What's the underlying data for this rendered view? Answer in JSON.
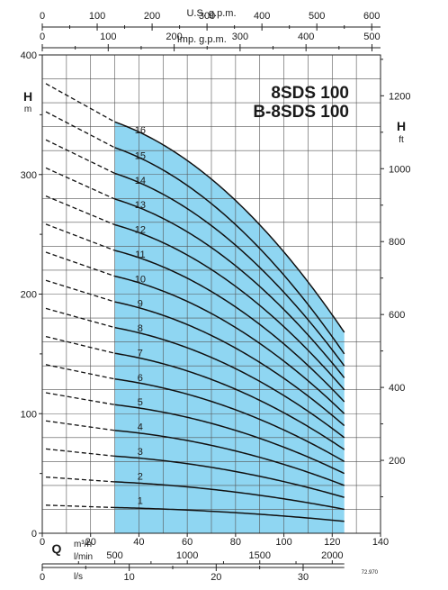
{
  "chart_data": {
    "type": "line",
    "title_lines": [
      "8SDS 100",
      "B-8SDS 100"
    ],
    "axes": {
      "usgpm": {
        "label": "U.S. g.p.m.",
        "ticks": [
          0,
          100,
          200,
          300,
          400,
          500,
          600
        ],
        "range": [
          0,
          616
        ]
      },
      "impgpm": {
        "label": "Imp. g.p.m.",
        "ticks": [
          0,
          100,
          200,
          300,
          400,
          500
        ],
        "range": [
          0,
          513
        ]
      },
      "q_m3h": {
        "label_symbol": "Q",
        "label": "m³/h",
        "ticks": [
          0,
          20,
          40,
          60,
          80,
          100,
          120,
          140
        ],
        "range": [
          0,
          140
        ]
      },
      "q_lmin": {
        "label": "l/min",
        "ticks": [
          500,
          1000,
          1500,
          2000
        ],
        "range": [
          0,
          2333
        ]
      },
      "q_ls": {
        "label": "l/s",
        "ticks": [
          0,
          10,
          20,
          30
        ],
        "range": [
          0,
          38.9
        ]
      },
      "h_m": {
        "symbol": "H",
        "unit": "m",
        "ticks": [
          0,
          100,
          200,
          300,
          400
        ],
        "range": [
          0,
          400
        ]
      },
      "h_ft": {
        "symbol": "H",
        "unit": "ft",
        "ticks": [
          200,
          400,
          600,
          800,
          1000,
          1200
        ],
        "range": [
          0,
          1312
        ]
      }
    },
    "grid": true,
    "operating_range_q": [
      30,
      125
    ],
    "curve_q_max": 125,
    "q_min": 0,
    "series": [
      {
        "name": "1",
        "head_at_0": 23.5,
        "head_at_30": 21.5,
        "head_at_125": 10
      },
      {
        "name": "2",
        "head_at_0": 47,
        "head_at_30": 43,
        "head_at_125": 20
      },
      {
        "name": "3",
        "head_at_0": 70.5,
        "head_at_30": 64.5,
        "head_at_125": 30
      },
      {
        "name": "4",
        "head_at_0": 94,
        "head_at_30": 86,
        "head_at_125": 40
      },
      {
        "name": "5",
        "head_at_0": 117.5,
        "head_at_30": 107.5,
        "head_at_125": 50
      },
      {
        "name": "6",
        "head_at_0": 141,
        "head_at_30": 129,
        "head_at_125": 60
      },
      {
        "name": "7",
        "head_at_0": 164.5,
        "head_at_30": 150.5,
        "head_at_125": 70
      },
      {
        "name": "8",
        "head_at_0": 188,
        "head_at_30": 172,
        "head_at_125": 80
      },
      {
        "name": "9",
        "head_at_0": 211.5,
        "head_at_30": 193.5,
        "head_at_125": 90
      },
      {
        "name": "10",
        "head_at_0": 235,
        "head_at_30": 215,
        "head_at_125": 100
      },
      {
        "name": "11",
        "head_at_0": 258.5,
        "head_at_30": 236.5,
        "head_at_125": 110
      },
      {
        "name": "12",
        "head_at_0": 282,
        "head_at_30": 258,
        "head_at_125": 120
      },
      {
        "name": "13",
        "head_at_0": 305.5,
        "head_at_30": 279.5,
        "head_at_125": 130
      },
      {
        "name": "14",
        "head_at_0": 329,
        "head_at_30": 301,
        "head_at_125": 140
      },
      {
        "name": "15",
        "head_at_0": 352.5,
        "head_at_30": 322.5,
        "head_at_125": 150
      },
      {
        "name": "16",
        "head_at_0": 376,
        "head_at_30": 344,
        "head_at_125": 168
      }
    ],
    "colors": {
      "operating_area": "#8fd6f2",
      "curve": "#111111",
      "grid": "#555555"
    },
    "footnote": "72.970"
  }
}
